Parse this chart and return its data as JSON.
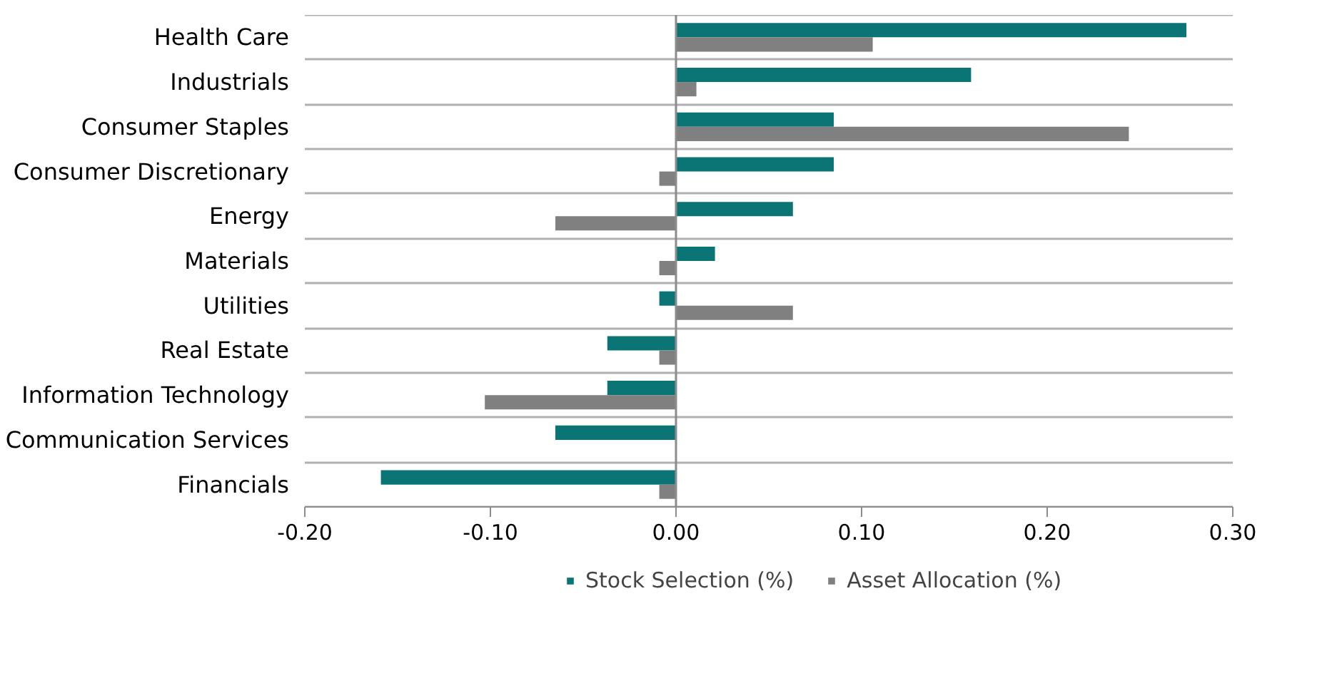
{
  "chart_data": {
    "type": "bar",
    "orientation": "horizontal",
    "categories": [
      "Health Care",
      "Industrials",
      "Consumer Staples",
      "Consumer Discretionary",
      "Energy",
      "Materials",
      "Utilities",
      "Real Estate",
      "Information Technology",
      "Communication Services",
      "Financials"
    ],
    "series": [
      {
        "name": "Stock Selection (%)",
        "color": "#0b7576",
        "values": [
          0.275,
          0.159,
          0.085,
          0.085,
          0.063,
          0.021,
          -0.009,
          -0.037,
          -0.037,
          -0.065,
          -0.159
        ]
      },
      {
        "name": "Asset Allocation (%)",
        "color": "#808080",
        "values": [
          0.106,
          0.011,
          0.244,
          -0.009,
          -0.065,
          -0.009,
          0.063,
          -0.009,
          -0.103,
          null,
          -0.009
        ]
      }
    ],
    "xlim": [
      -0.2,
      0.3
    ],
    "xticks": [
      {
        "value": -0.2,
        "label": "-0.20"
      },
      {
        "value": -0.1,
        "label": "-0.10"
      },
      {
        "value": 0,
        "label": "0.00"
      },
      {
        "value": 0.1,
        "label": "0.10"
      },
      {
        "value": 0.2,
        "label": "0.20"
      },
      {
        "value": 0.3,
        "label": "0.30"
      }
    ],
    "grid": "y",
    "legend": "bottom"
  }
}
